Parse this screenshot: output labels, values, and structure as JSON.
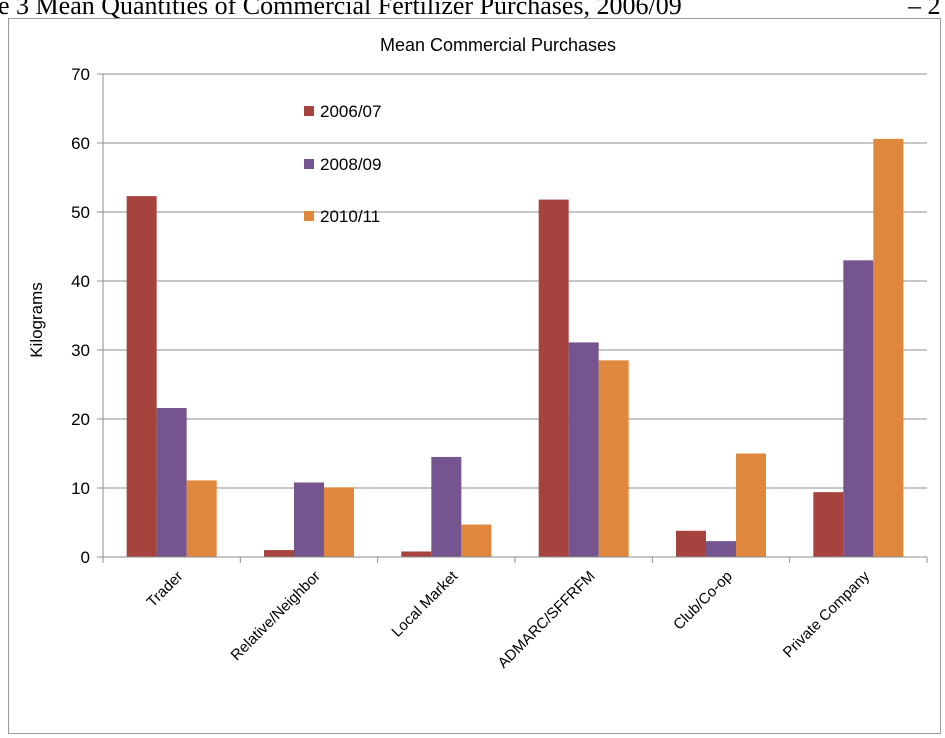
{
  "page": {
    "header_text": "e 3 Mean Quantities of Commercial Fertilizer Purchases, 2006/09",
    "header_tail": "– 2"
  },
  "chart_data": {
    "type": "bar",
    "title": "Mean Commercial Purchases",
    "xlabel": "",
    "ylabel": "Kilograms",
    "ylim": [
      0,
      70
    ],
    "yticks": [
      0,
      10,
      20,
      30,
      40,
      50,
      60,
      70
    ],
    "grid": true,
    "legend_position": "top-left inside",
    "categories": [
      "Trader",
      "Relative/Neighbor",
      "Local Market",
      "ADMARC/SFFRFM",
      "Club/Co-op",
      "Private Company"
    ],
    "series": [
      {
        "name": "2006/07",
        "color": "#a6433f",
        "values": [
          52.3,
          1.0,
          0.8,
          51.8,
          3.8,
          9.4
        ]
      },
      {
        "name": "2008/09",
        "color": "#74558f",
        "values": [
          21.6,
          10.8,
          14.5,
          31.1,
          2.3,
          43.0
        ]
      },
      {
        "name": "2010/11",
        "color": "#de873d",
        "values": [
          11.1,
          10.1,
          4.7,
          28.5,
          15.0,
          60.6
        ]
      }
    ]
  }
}
